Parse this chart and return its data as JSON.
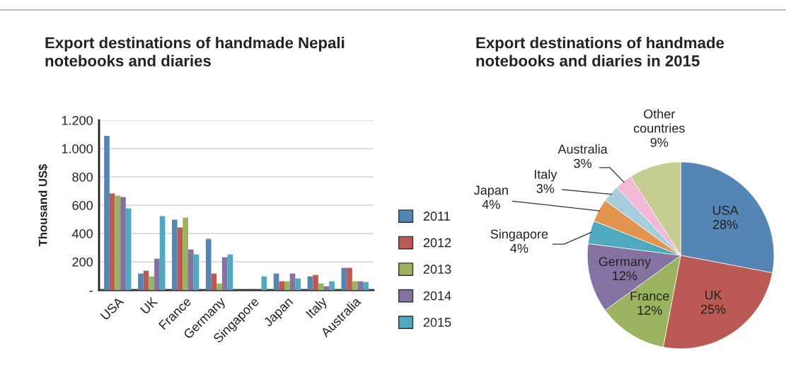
{
  "chart_data": [
    {
      "type": "bar",
      "title": "Export destinations of handmade Nepali\nnotebooks and diaries",
      "ylabel": "Thousand US$",
      "categories": [
        "USA",
        "UK",
        "France",
        "Germany",
        "Singapore",
        "Japan",
        "Italy",
        "Australia"
      ],
      "series": [
        {
          "name": "2011",
          "color": "#5585b5",
          "values": [
            1090,
            117,
            497,
            362,
            null,
            117,
            97,
            157
          ]
        },
        {
          "name": "2012",
          "color": "#bb5a55",
          "values": [
            682,
            137,
            442,
            117,
            null,
            62,
            107,
            157
          ]
        },
        {
          "name": "2013",
          "color": "#9bb25e",
          "values": [
            667,
            97,
            512,
            47,
            null,
            62,
            47,
            62
          ]
        },
        {
          "name": "2014",
          "color": "#8571a2",
          "values": [
            657,
            222,
            287,
            232,
            null,
            117,
            27,
            62
          ]
        },
        {
          "name": "2015",
          "color": "#4fa9bf",
          "values": [
            577,
            522,
            252,
            252,
            97,
            82,
            62,
            57
          ]
        }
      ],
      "ylim": [
        0,
        1200
      ],
      "yticks": [
        {
          "value": 0,
          "label": "-"
        },
        200,
        400,
        600,
        800,
        {
          "value": 1000,
          "label": "1.000"
        },
        {
          "value": 1200,
          "label": "1.200"
        }
      ],
      "grid": "y",
      "legend": "right"
    },
    {
      "type": "pie",
      "title": "Export destinations of handmade\nnotebooks and diaries in 2015",
      "categories": [
        "USA",
        "UK",
        "France",
        "Germany",
        "Singapore",
        "Japan",
        "Italy",
        "Australia",
        "Other\ncountries"
      ],
      "values": [
        28,
        25,
        12,
        12,
        4,
        4,
        3,
        3,
        9
      ],
      "value_labels": [
        "28%",
        "25%",
        "12%",
        "12%",
        "4%",
        "4%",
        "3%",
        "3%",
        "9%"
      ],
      "colors": [
        "#5585b5",
        "#bb5a55",
        "#9bb25e",
        "#8571a2",
        "#4fa9bf",
        "#e2954e",
        "#a6cedd",
        "#f2b8d5",
        "#c6cd92"
      ]
    }
  ]
}
